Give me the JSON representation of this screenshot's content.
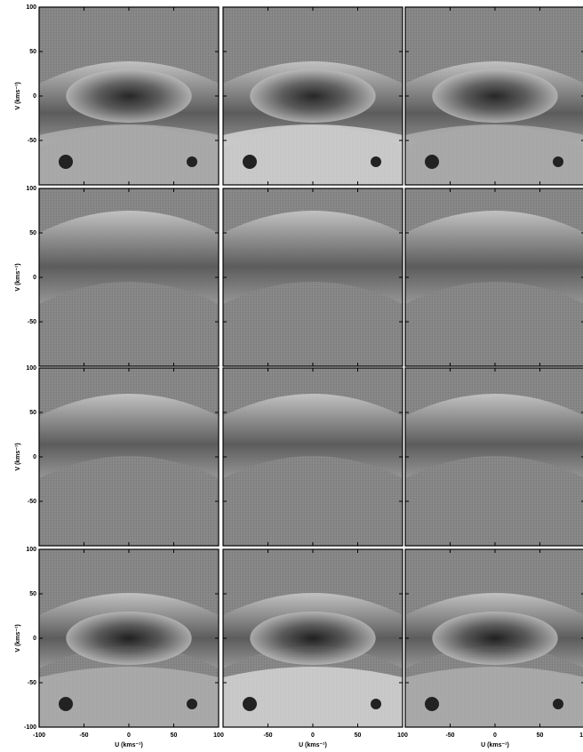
{
  "chart_data": {
    "type": "heatmap",
    "xlabel": "U (kms⁻¹)",
    "ylabel": "V (kms⁻¹)",
    "xlim": [
      -100,
      100
    ],
    "ylim": [
      -100,
      100
    ],
    "xticks": [
      -100,
      -50,
      0,
      50,
      100
    ],
    "yticks": [
      -100,
      -50,
      0,
      50,
      100
    ]
  }
}
